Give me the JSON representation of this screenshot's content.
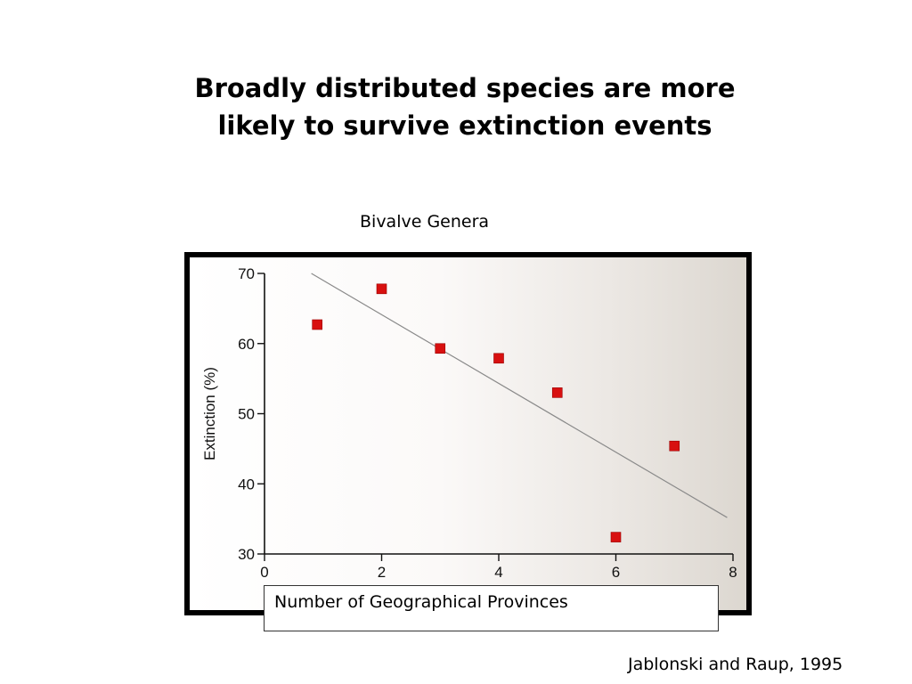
{
  "slide": {
    "title_line1": "Broadly distributed species are more",
    "title_line2": "likely to survive extinction events",
    "caption": "Bivalve Genera",
    "credit": "Jablonski and Raup, 1995"
  },
  "chart_data": {
    "type": "scatter",
    "title": "Bivalve Genera",
    "xlabel": "Number of Geographical Provinces",
    "ylabel": "Extinction (%)",
    "xlim": [
      0,
      8
    ],
    "ylim": [
      30,
      70
    ],
    "xticks": [
      0,
      2,
      4,
      6,
      8
    ],
    "yticks": [
      30,
      40,
      50,
      60,
      70
    ],
    "grid": false,
    "legend": "none",
    "marker_color": "#d81010",
    "trendline_color": "#8a8a8a",
    "points": [
      {
        "x": 0.9,
        "y": 62.7
      },
      {
        "x": 2.0,
        "y": 67.8
      },
      {
        "x": 3.0,
        "y": 59.3
      },
      {
        "x": 4.0,
        "y": 57.9
      },
      {
        "x": 5.0,
        "y": 53.0
      },
      {
        "x": 6.0,
        "y": 32.4
      },
      {
        "x": 7.0,
        "y": 45.4
      }
    ],
    "trendline": {
      "x": [
        0.8,
        7.9
      ],
      "y": [
        70.0,
        35.2
      ]
    }
  }
}
